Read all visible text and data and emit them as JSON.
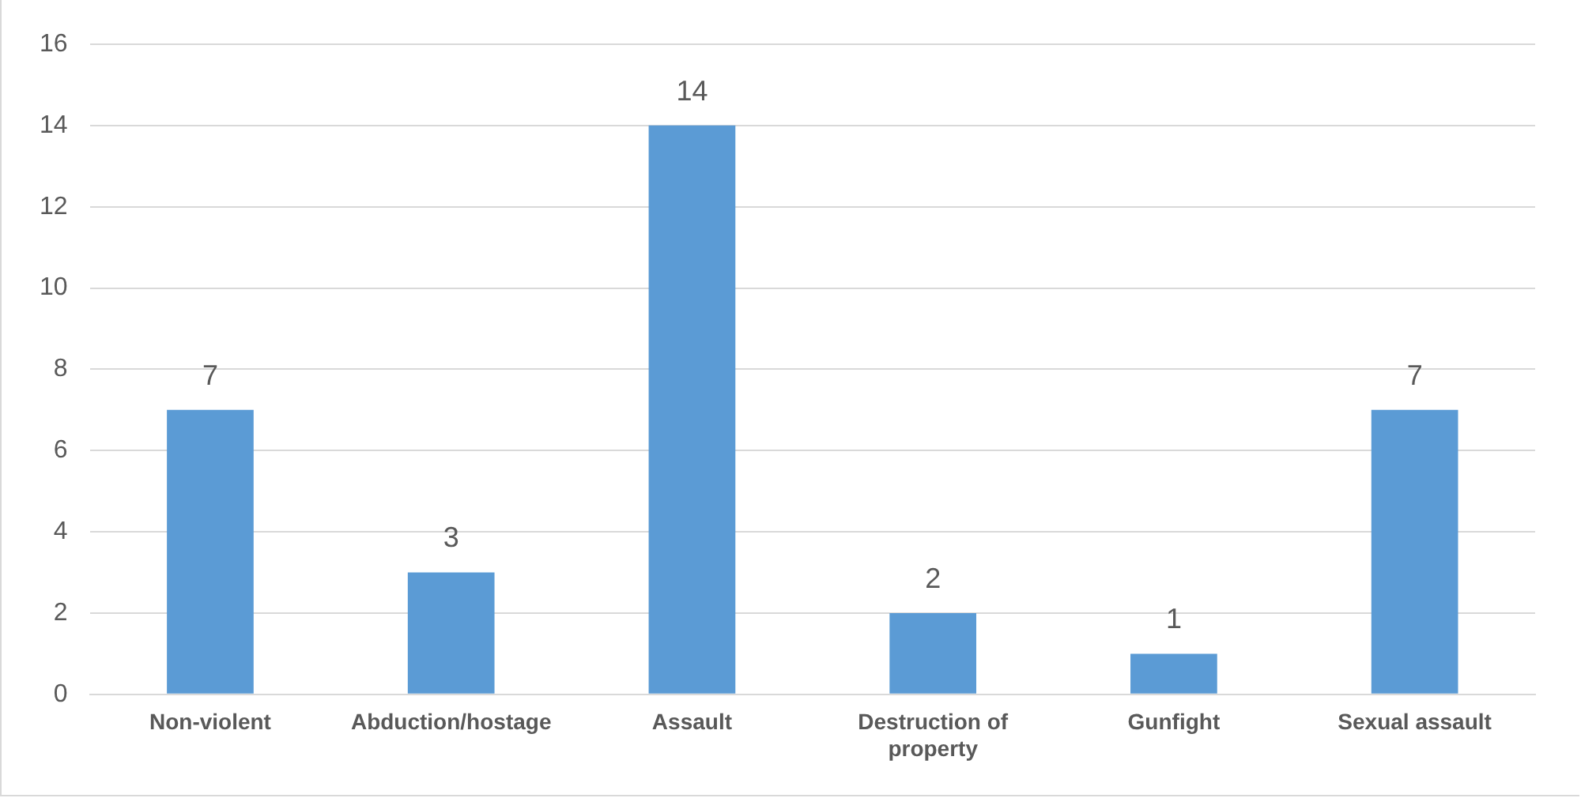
{
  "chart_data": {
    "type": "bar",
    "categories": [
      "Non-violent",
      "Abduction/hostage",
      "Assault",
      "Destruction of property",
      "Gunfight",
      "Sexual assault"
    ],
    "values": [
      7,
      3,
      14,
      2,
      1,
      7
    ],
    "color": "#5b9bd5",
    "ylim": [
      0,
      16
    ],
    "yticks": [
      0,
      2,
      4,
      6,
      8,
      10,
      12,
      14,
      16
    ],
    "grid": "y",
    "data_labels": true
  }
}
